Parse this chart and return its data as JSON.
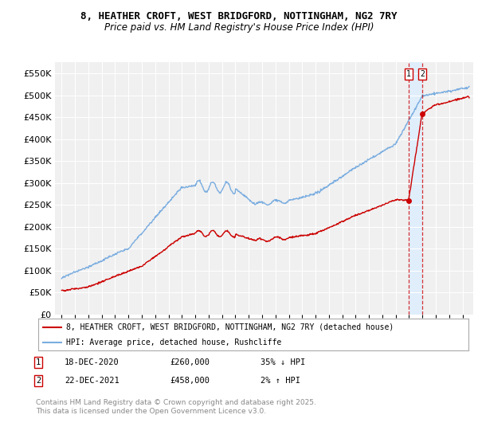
{
  "title": "8, HEATHER CROFT, WEST BRIDGFORD, NOTTINGHAM, NG2 7RY",
  "subtitle": "Price paid vs. HM Land Registry's House Price Index (HPI)",
  "legend_label_red": "8, HEATHER CROFT, WEST BRIDGFORD, NOTTINGHAM, NG2 7RY (detached house)",
  "legend_label_blue": "HPI: Average price, detached house, Rushcliffe",
  "footer": "Contains HM Land Registry data © Crown copyright and database right 2025.\nThis data is licensed under the Open Government Licence v3.0.",
  "transactions": [
    {
      "num": 1,
      "date": "18-DEC-2020",
      "price": 260000,
      "hpi_change": "35% ↓ HPI"
    },
    {
      "num": 2,
      "date": "22-DEC-2021",
      "price": 458000,
      "hpi_change": "2% ↑ HPI"
    }
  ],
  "transaction_prices": [
    260000,
    458000
  ],
  "transaction_years": [
    2020.96,
    2021.97
  ],
  "ylim": [
    0,
    575000
  ],
  "yticks": [
    0,
    50000,
    100000,
    150000,
    200000,
    250000,
    300000,
    350000,
    400000,
    450000,
    500000,
    550000
  ],
  "color_red": "#cc0000",
  "color_blue": "#7aade0",
  "color_dashed": "#cc0000",
  "shaded_color": "#ddeeff",
  "background_plot": "#f0f0f0",
  "background_fig": "#ffffff",
  "grid_color": "#ffffff",
  "title_fontsize": 9,
  "subtitle_fontsize": 8.5,
  "tick_fontsize": 8,
  "legend_fontsize": 8,
  "footer_fontsize": 6.5
}
